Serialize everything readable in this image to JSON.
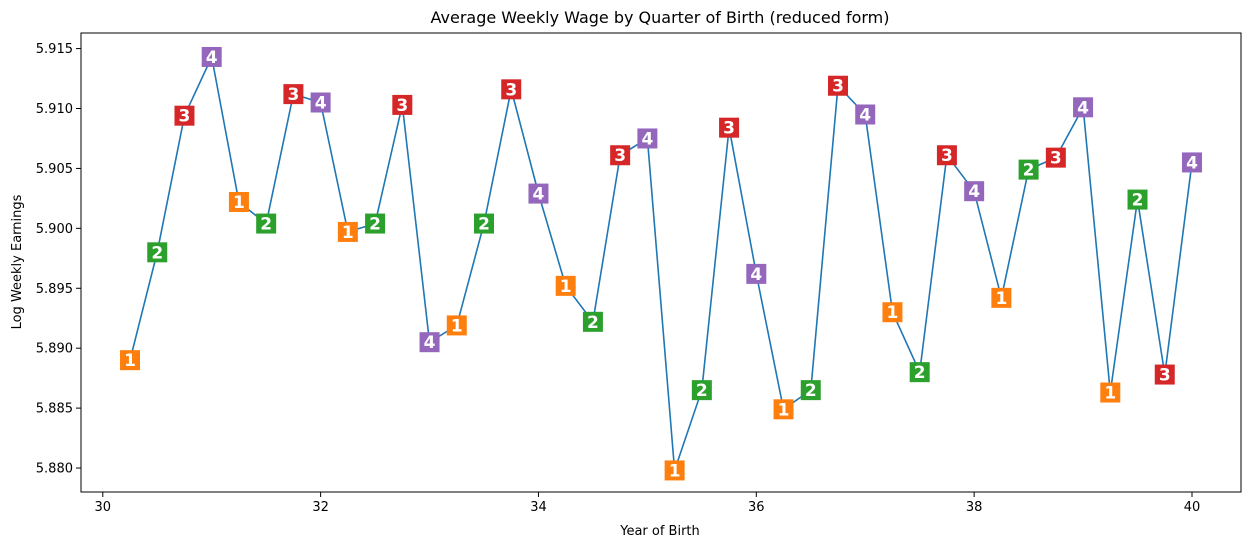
{
  "chart_data": {
    "type": "line",
    "title": "Average Weekly Wage by Quarter of Birth (reduced form)",
    "xlabel": "Year of Birth",
    "ylabel": "Log Weekly Earnings",
    "xlim": [
      29.8,
      40.45
    ],
    "ylim": [
      5.878,
      5.9163
    ],
    "xticks": [
      "30",
      "32",
      "34",
      "36",
      "38",
      "40"
    ],
    "yticks": [
      "5.880",
      "5.885",
      "5.890",
      "5.895",
      "5.900",
      "5.905",
      "5.910",
      "5.915"
    ],
    "grid": false,
    "line_color": "#1f77b4",
    "quarter_colors": {
      "1": "#ff7f0e",
      "2": "#2ca02c",
      "3": "#d62728",
      "4": "#9467bd"
    },
    "points": [
      {
        "x": 30.25,
        "y": 5.889,
        "q": "1"
      },
      {
        "x": 30.5,
        "y": 5.898,
        "q": "2"
      },
      {
        "x": 30.75,
        "y": 5.9094,
        "q": "3"
      },
      {
        "x": 31.0,
        "y": 5.9143,
        "q": "4"
      },
      {
        "x": 31.25,
        "y": 5.9022,
        "q": "1"
      },
      {
        "x": 31.5,
        "y": 5.9004,
        "q": "2"
      },
      {
        "x": 31.75,
        "y": 5.9112,
        "q": "3"
      },
      {
        "x": 32.0,
        "y": 5.9105,
        "q": "4"
      },
      {
        "x": 32.25,
        "y": 5.8997,
        "q": "1"
      },
      {
        "x": 32.5,
        "y": 5.9004,
        "q": "2"
      },
      {
        "x": 32.75,
        "y": 5.9103,
        "q": "3"
      },
      {
        "x": 33.0,
        "y": 5.8905,
        "q": "4"
      },
      {
        "x": 33.25,
        "y": 5.8919,
        "q": "1"
      },
      {
        "x": 33.5,
        "y": 5.9004,
        "q": "2"
      },
      {
        "x": 33.75,
        "y": 5.9116,
        "q": "3"
      },
      {
        "x": 34.0,
        "y": 5.9029,
        "q": "4"
      },
      {
        "x": 34.25,
        "y": 5.8952,
        "q": "1"
      },
      {
        "x": 34.5,
        "y": 5.8922,
        "q": "2"
      },
      {
        "x": 34.75,
        "y": 5.9061,
        "q": "3"
      },
      {
        "x": 35.0,
        "y": 5.9075,
        "q": "4"
      },
      {
        "x": 35.25,
        "y": 5.8798,
        "q": "1"
      },
      {
        "x": 35.5,
        "y": 5.8865,
        "q": "2"
      },
      {
        "x": 35.75,
        "y": 5.9084,
        "q": "3"
      },
      {
        "x": 36.0,
        "y": 5.8962,
        "q": "4"
      },
      {
        "x": 36.25,
        "y": 5.8849,
        "q": "1"
      },
      {
        "x": 36.5,
        "y": 5.8865,
        "q": "2"
      },
      {
        "x": 36.75,
        "y": 5.9119,
        "q": "3"
      },
      {
        "x": 37.0,
        "y": 5.9095,
        "q": "4"
      },
      {
        "x": 37.25,
        "y": 5.893,
        "q": "1"
      },
      {
        "x": 37.5,
        "y": 5.888,
        "q": "2"
      },
      {
        "x": 37.75,
        "y": 5.9061,
        "q": "3"
      },
      {
        "x": 38.0,
        "y": 5.9031,
        "q": "4"
      },
      {
        "x": 38.25,
        "y": 5.8942,
        "q": "1"
      },
      {
        "x": 38.5,
        "y": 5.9049,
        "q": "2"
      },
      {
        "x": 38.75,
        "y": 5.9059,
        "q": "3"
      },
      {
        "x": 39.0,
        "y": 5.9101,
        "q": "4"
      },
      {
        "x": 39.25,
        "y": 5.8863,
        "q": "1"
      },
      {
        "x": 39.5,
        "y": 5.9024,
        "q": "2"
      },
      {
        "x": 39.75,
        "y": 5.8878,
        "q": "3"
      },
      {
        "x": 40.0,
        "y": 5.9055,
        "q": "4"
      }
    ]
  }
}
